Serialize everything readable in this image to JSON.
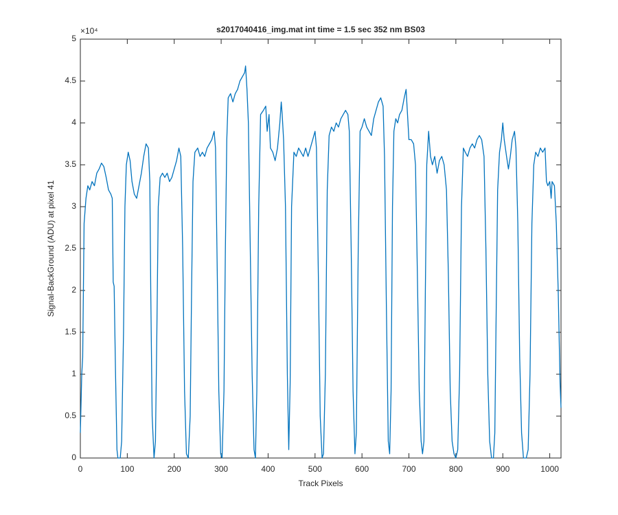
{
  "chart_data": {
    "type": "line",
    "title": "s2017040416_img.mat int time = 1.5 sec  352 nm BS03",
    "x_label": "Track Pixels",
    "y_label": "Signal-BackGround (ADU) at pixel 41",
    "y_exponent_label": "×10⁴",
    "xlim": [
      0,
      1024
    ],
    "xticks": [
      0,
      100,
      200,
      300,
      400,
      500,
      600,
      700,
      800,
      900,
      1000
    ],
    "ylim": [
      0,
      50000
    ],
    "yticks": [
      {
        "value": 0,
        "label": "0"
      },
      {
        "value": 5000,
        "label": "0.5"
      },
      {
        "value": 10000,
        "label": "1"
      },
      {
        "value": 15000,
        "label": "1.5"
      },
      {
        "value": 20000,
        "label": "2"
      },
      {
        "value": 25000,
        "label": "2.5"
      },
      {
        "value": 30000,
        "label": "3"
      },
      {
        "value": 35000,
        "label": "3.5"
      },
      {
        "value": 40000,
        "label": "4"
      },
      {
        "value": 45000,
        "label": "4.5"
      },
      {
        "value": 50000,
        "label": "5"
      }
    ],
    "grid": false,
    "color": "#0072bd",
    "x": [
      0,
      3,
      5,
      8,
      12,
      16,
      20,
      25,
      30,
      35,
      40,
      45,
      50,
      55,
      60,
      65,
      68,
      70,
      72,
      75,
      78,
      80,
      85,
      88,
      92,
      95,
      98,
      102,
      106,
      110,
      115,
      120,
      125,
      130,
      135,
      140,
      145,
      148,
      150,
      153,
      157,
      160,
      163,
      166,
      170,
      175,
      180,
      185,
      190,
      195,
      200,
      205,
      210,
      214,
      218,
      222,
      226,
      230,
      234,
      237,
      240,
      244,
      250,
      255,
      260,
      265,
      270,
      275,
      280,
      285,
      288,
      291,
      295,
      299,
      302,
      306,
      309,
      312,
      315,
      320,
      325,
      330,
      335,
      340,
      345,
      350,
      352,
      355,
      358,
      362,
      366,
      370,
      373,
      376,
      380,
      384,
      390,
      395,
      398,
      402,
      405,
      410,
      415,
      420,
      425,
      428,
      430,
      433,
      437,
      441,
      444,
      447,
      450,
      455,
      460,
      465,
      470,
      475,
      480,
      485,
      490,
      495,
      500,
      503,
      507,
      511,
      515,
      518,
      522,
      526,
      530,
      535,
      540,
      545,
      550,
      555,
      560,
      565,
      570,
      573,
      577,
      581,
      585,
      588,
      592,
      596,
      600,
      605,
      610,
      615,
      620,
      625,
      630,
      635,
      640,
      645,
      648,
      652,
      656,
      659,
      662,
      665,
      668,
      672,
      676,
      680,
      685,
      690,
      694,
      697,
      700,
      705,
      710,
      714,
      718,
      722,
      726,
      729,
      732,
      735,
      738,
      742,
      746,
      750,
      755,
      760,
      765,
      770,
      775,
      780,
      784,
      788,
      792,
      796,
      800,
      804,
      808,
      812,
      816,
      820,
      825,
      830,
      835,
      840,
      845,
      850,
      855,
      860,
      864,
      868,
      872,
      876,
      880,
      883,
      886,
      889,
      893,
      897,
      900,
      903,
      908,
      912,
      916,
      920,
      925,
      928,
      932,
      936,
      940,
      944,
      950,
      954,
      958,
      962,
      966,
      970,
      975,
      980,
      985,
      990,
      993,
      996,
      1000,
      1003,
      1005,
      1010,
      1014,
      1018,
      1022,
      1024
    ],
    "values": [
      3000,
      10000,
      12000,
      28000,
      31000,
      32500,
      32000,
      33000,
      32500,
      34000,
      34500,
      35200,
      34800,
      33500,
      32000,
      31500,
      31000,
      21000,
      20500,
      10000,
      1000,
      0,
      0,
      2000,
      15000,
      30000,
      35000,
      36500,
      35500,
      33000,
      31500,
      31000,
      32500,
      34000,
      36000,
      37500,
      37000,
      33000,
      20000,
      5000,
      0,
      2000,
      15000,
      30000,
      33500,
      34000,
      33500,
      34000,
      33000,
      33500,
      34500,
      35500,
      37000,
      36000,
      25000,
      8000,
      500,
      0,
      5000,
      20000,
      33000,
      36500,
      37000,
      36000,
      36500,
      36000,
      37000,
      37500,
      38000,
      39000,
      37000,
      25000,
      8000,
      500,
      0,
      8000,
      25000,
      38000,
      43000,
      43500,
      42500,
      43500,
      44000,
      45000,
      45500,
      46000,
      46800,
      44000,
      40000,
      25000,
      10000,
      1000,
      0,
      8000,
      30000,
      41000,
      41500,
      42000,
      39000,
      41000,
      37000,
      36500,
      35500,
      37000,
      40000,
      42500,
      41000,
      38000,
      30000,
      10000,
      1000,
      9000,
      30000,
      36500,
      36000,
      37000,
      36500,
      36000,
      37000,
      36000,
      37000,
      38000,
      39000,
      37000,
      22000,
      5000,
      0,
      500,
      10000,
      32000,
      38500,
      39500,
      39000,
      40000,
      39500,
      40500,
      41000,
      41500,
      41000,
      39000,
      25000,
      8000,
      500,
      3000,
      25000,
      39000,
      39500,
      40500,
      39500,
      39000,
      38500,
      40500,
      41500,
      42500,
      43000,
      42000,
      36000,
      18000,
      2000,
      500,
      8000,
      30000,
      39000,
      40500,
      40000,
      41000,
      41500,
      43000,
      44000,
      41000,
      38000,
      38000,
      37500,
      35000,
      22000,
      8000,
      2000,
      500,
      2000,
      20000,
      35000,
      39000,
      36000,
      35000,
      36000,
      34000,
      35500,
      36000,
      35000,
      32000,
      22000,
      8000,
      2000,
      500,
      0,
      1000,
      10000,
      30000,
      37000,
      36500,
      36000,
      37000,
      37500,
      37000,
      38000,
      38500,
      38000,
      36000,
      25000,
      10000,
      2000,
      0,
      0,
      3000,
      18000,
      32000,
      36500,
      38000,
      40000,
      38000,
      36000,
      34500,
      36000,
      38000,
      39000,
      37000,
      28000,
      12000,
      3000,
      0,
      0,
      1000,
      10000,
      28000,
      35000,
      36500,
      36000,
      37000,
      36500,
      37000,
      33000,
      32500,
      33000,
      31000,
      33000,
      32500,
      28000,
      20000,
      9000,
      6000
    ]
  }
}
